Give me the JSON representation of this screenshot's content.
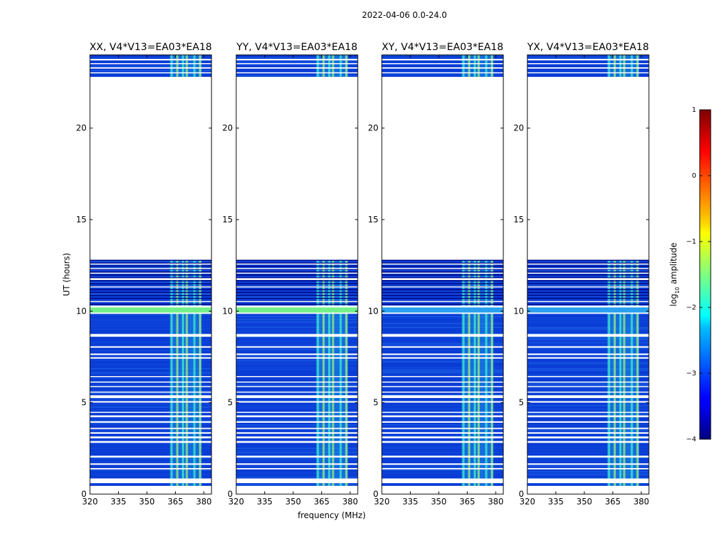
{
  "figure": {
    "suptitle": "2022-04-06 0.0-24.0",
    "ylabel": "UT (hours)",
    "xlabel": "frequency (MHz)"
  },
  "chart_data": {
    "type": "heatmap",
    "ylabel": "UT (hours)",
    "xlabel": "frequency (MHz)",
    "xlim": [
      320,
      384
    ],
    "ylim": [
      0,
      24
    ],
    "xticks": [
      320,
      335,
      350,
      365,
      380
    ],
    "xtick_labels": [
      "320",
      "335",
      "350",
      "365",
      "380"
    ],
    "yticks": [
      0,
      5,
      10,
      15,
      20
    ],
    "ytick_labels": [
      "0",
      "5",
      "10",
      "15",
      "20"
    ],
    "panels": [
      {
        "title": "XX, V4*V13=EA03*EA18",
        "band_10h_bright": true
      },
      {
        "title": "YY, V4*V13=EA03*EA18",
        "band_10h_bright": true
      },
      {
        "title": "XY, V4*V13=EA03*EA18",
        "band_10h_bright": false
      },
      {
        "title": "YX, V4*V13=EA03*EA18",
        "band_10h_bright": false
      }
    ],
    "data_segments_hours": [
      [
        0.45,
        0.6
      ],
      [
        0.85,
        12.8
      ],
      [
        22.8,
        24.0
      ]
    ],
    "flagged_gaps_hours": [
      [
        0.6,
        0.85
      ],
      [
        1.35,
        1.42
      ],
      [
        1.6,
        1.68
      ],
      [
        2.0,
        2.1
      ],
      [
        2.8,
        2.9
      ],
      [
        3.05,
        3.15
      ],
      [
        3.3,
        3.38
      ],
      [
        3.55,
        3.62
      ],
      [
        3.9,
        3.98
      ],
      [
        4.2,
        4.3
      ],
      [
        4.45,
        4.5
      ],
      [
        5.0,
        5.08
      ],
      [
        5.25,
        5.4
      ],
      [
        5.55,
        5.6
      ],
      [
        5.85,
        5.9
      ],
      [
        6.1,
        6.15
      ],
      [
        6.4,
        6.45
      ],
      [
        7.4,
        7.48
      ],
      [
        7.6,
        7.68
      ],
      [
        8.0,
        8.08
      ],
      [
        8.6,
        8.75
      ],
      [
        9.85,
        9.92
      ],
      [
        10.2,
        10.3
      ],
      [
        10.5,
        10.55
      ],
      [
        11.3,
        11.35
      ],
      [
        11.7,
        11.8
      ],
      [
        12.05,
        12.1
      ],
      [
        12.3,
        12.35
      ],
      [
        12.55,
        12.6
      ],
      [
        23.0,
        23.05
      ],
      [
        23.25,
        23.32
      ],
      [
        23.5,
        23.55
      ],
      [
        23.7,
        23.78
      ]
    ],
    "rfi_band_mhz": [
      362,
      379
    ],
    "rfi_lines_mhz": [
      363,
      366,
      369,
      371,
      375,
      378
    ],
    "colorbar": {
      "label": "log10 amplitude",
      "label_main": "log",
      "label_sub": "10",
      "label_rest": " amplitude",
      "min": -4,
      "max": 1,
      "ticks": [
        1,
        0,
        -1,
        -2,
        -3,
        -4
      ],
      "tick_labels": [
        "1",
        "0",
        "−1",
        "−2",
        "−3",
        "−4"
      ],
      "colormap": "jet"
    }
  },
  "colors": {
    "background_noise": "#0a3dd6",
    "noise_light": "#2a7cf0",
    "rfi": "#3ff0c8",
    "rfi_bright": "#9cf27a",
    "dark_flag": "#00007a",
    "bright_band": "#74f08a"
  }
}
